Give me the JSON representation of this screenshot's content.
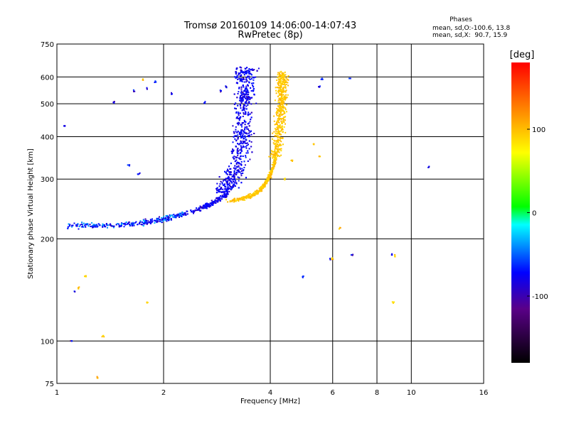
{
  "chart_data": {
    "type": "scatter",
    "title": "Tromsø 20160109 14:06:00-14:07:43",
    "subtitle": "RwPretec (8p)",
    "xlabel": "Frequency [MHz]",
    "ylabel": "Stationary phase Virtual Height [km]",
    "x_scale": "log",
    "y_scale": "log",
    "xlim": [
      1,
      16
    ],
    "ylim": [
      75,
      750
    ],
    "x_ticks": [
      1,
      2,
      4,
      6,
      8,
      10,
      16
    ],
    "y_ticks": [
      75,
      100,
      200,
      300,
      400,
      500,
      600,
      750
    ],
    "grid": true,
    "stats": {
      "heading": "Phases",
      "o_line": "mean, sd,O:-100.6, 13.8",
      "x_line": "mean, sd,X:  90.7, 15.9"
    },
    "colorbar": {
      "label": "[deg]",
      "range": [
        -180,
        180
      ],
      "ticks": [
        100,
        0,
        -100
      ],
      "colors": [
        "#000000",
        "#5a0088",
        "#0000ff",
        "#00ffff",
        "#00ff00",
        "#ffff00",
        "#ff8000",
        "#ff0000"
      ]
    },
    "series": [
      {
        "mode": "O",
        "phase_deg": -100.6,
        "trace": [
          [
            1.06,
            218
          ],
          [
            1.1,
            219
          ],
          [
            1.2,
            219
          ],
          [
            1.3,
            219
          ],
          [
            1.5,
            220
          ],
          [
            1.7,
            222
          ],
          [
            1.9,
            226
          ],
          [
            2.1,
            231
          ],
          [
            2.4,
            240
          ],
          [
            2.7,
            252
          ],
          [
            3.0,
            270
          ],
          [
            3.2,
            290
          ],
          [
            3.35,
            320
          ],
          [
            3.45,
            360
          ],
          [
            3.5,
            420
          ],
          [
            3.52,
            500
          ],
          [
            3.54,
            580
          ],
          [
            3.55,
            640
          ]
        ],
        "scatter": [
          [
            1.05,
            430
          ],
          [
            1.45,
            505
          ],
          [
            1.65,
            545
          ],
          [
            1.8,
            555
          ],
          [
            1.9,
            580
          ],
          [
            2.1,
            535
          ],
          [
            2.6,
            505
          ],
          [
            2.9,
            545
          ],
          [
            3.0,
            560
          ],
          [
            3.2,
            620
          ],
          [
            5.5,
            560
          ],
          [
            5.6,
            590
          ],
          [
            6.7,
            595
          ],
          [
            6.8,
            180
          ],
          [
            8.8,
            180
          ],
          [
            1.12,
            140
          ],
          [
            1.1,
            100
          ],
          [
            1.6,
            330
          ],
          [
            1.7,
            310
          ],
          [
            2.9,
            260
          ],
          [
            3.1,
            280
          ],
          [
            4.95,
            155
          ],
          [
            5.9,
            175
          ],
          [
            11.2,
            325
          ]
        ]
      },
      {
        "mode": "X",
        "phase_deg": 90.7,
        "trace": [
          [
            3.0,
            258
          ],
          [
            3.3,
            262
          ],
          [
            3.55,
            268
          ],
          [
            3.75,
            278
          ],
          [
            3.95,
            300
          ],
          [
            4.1,
            330
          ],
          [
            4.2,
            380
          ],
          [
            4.28,
            450
          ],
          [
            4.32,
            530
          ],
          [
            4.33,
            620
          ]
        ],
        "scatter": [
          [
            1.15,
            143
          ],
          [
            1.2,
            155
          ],
          [
            1.35,
            103
          ],
          [
            1.8,
            130
          ],
          [
            1.75,
            590
          ],
          [
            4.4,
            300
          ],
          [
            4.6,
            340
          ],
          [
            5.3,
            380
          ],
          [
            5.5,
            350
          ],
          [
            6.0,
            175
          ],
          [
            6.3,
            215
          ],
          [
            8.9,
            130
          ],
          [
            9.0,
            178
          ],
          [
            1.3,
            78
          ]
        ]
      }
    ]
  }
}
